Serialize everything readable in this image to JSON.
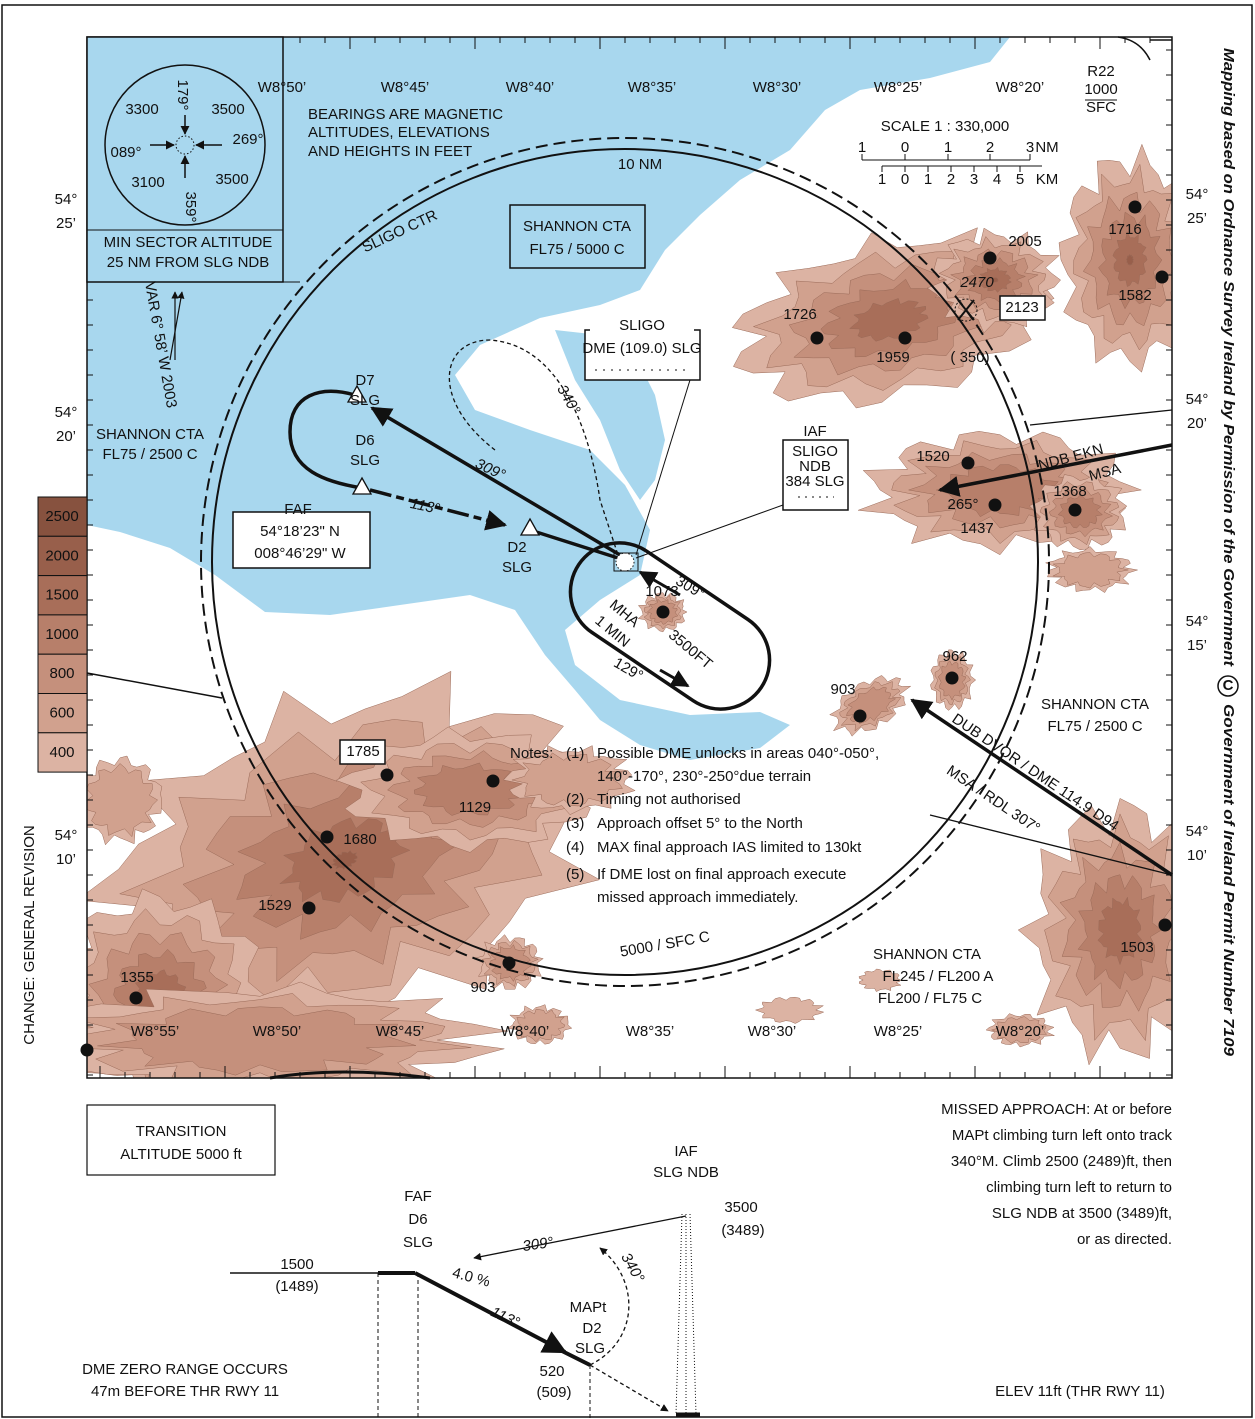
{
  "map": {
    "lon_top": [
      "W8°50’",
      "W8°45’",
      "W8°40’",
      "W8°35’",
      "W8°30’",
      "W8°25’",
      "W8°20’"
    ],
    "lon_bottom": [
      "W8°55’",
      "W8°50’",
      "W8°45’",
      "W8°40’",
      "W8°35’",
      "W8°30’",
      "W8°25’",
      "W8°20’"
    ],
    "lat_left": [
      [
        "54°",
        "25’"
      ],
      [
        "54°",
        "20’"
      ],
      [
        "54°",
        "10’"
      ]
    ],
    "lat_right": [
      [
        "54°",
        "25’"
      ],
      [
        "54°",
        "20’"
      ],
      [
        "54°",
        "15’"
      ],
      [
        "54°",
        "10’"
      ]
    ],
    "restricted_area": [
      "R22",
      "1000",
      "SFC"
    ],
    "scale": {
      "title": "SCALE 1 : 330,000",
      "nm_ticks": [
        "1",
        "0",
        "1",
        "2",
        "3"
      ],
      "nm_unit": "NM",
      "km_ticks": [
        "1",
        "0",
        "1",
        "2",
        "3",
        "4",
        "5"
      ],
      "km_unit": "KM"
    },
    "msa": {
      "bearings": [
        "179°",
        "269°",
        "089°",
        "359°"
      ],
      "altitudes": [
        "3300",
        "3500",
        "3100",
        "3500"
      ],
      "caption": [
        "MIN SECTOR ALTITUDE",
        "25 NM FROM SLG NDB"
      ]
    },
    "note_bearings": [
      "BEARINGS ARE MAGNETIC",
      "ALTITUDES, ELEVATIONS",
      "AND HEIGHTS IN FEET"
    ],
    "variation": "VAR 6° 58’ W 2003",
    "ring_label": "10 NM",
    "ctr_name": "SLIGO CTR",
    "ctr_limits": "5000 / SFC  C",
    "airspace": [
      {
        "name": "SHANNON CTA",
        "limits": [
          "FL75 / 5000  C"
        ]
      },
      {
        "name": "SHANNON CTA",
        "limits": [
          "FL75 / 2500  C"
        ]
      },
      {
        "name": "SHANNON CTA",
        "limits": [
          "FL75 / 2500  C"
        ]
      },
      {
        "name": "SHANNON CTA",
        "limits": [
          "FL245 / FL200  A",
          "FL200 / FL75  C"
        ]
      }
    ],
    "dme": {
      "name": "SLIGO",
      "ident": "DME  (109.0) SLG"
    },
    "ndb": {
      "role": "IAF",
      "name": "SLIGO",
      "type": "NDB",
      "ident": "384 SLG"
    },
    "fixes": [
      {
        "name": "D7",
        "ident": "SLG"
      },
      {
        "name": "D6",
        "ident": "SLG"
      },
      {
        "name": "D2",
        "ident": "SLG"
      }
    ],
    "faf": {
      "label": "FAF",
      "lat": "54°18’23\" N",
      "lon": "008°46’29\" W"
    },
    "tracks": {
      "inbound": "309°",
      "final": "113°",
      "missed": "340°",
      "hold_in": "309°",
      "hold_out": "129°",
      "mha": "MHA",
      "hold_time": "1 MIN",
      "hold_alt": "3500FT"
    },
    "ekn": {
      "name": "NDB EKN",
      "msa": "MSA",
      "radial": "265°"
    },
    "dub": {
      "name": "DUB DVOR / DME 114.9 D94",
      "msa": "MSA / RDL 307°"
    },
    "elevations": [
      2005,
      2470,
      2123,
      1726,
      1959,
      "( 350)",
      1716,
      1582,
      1520,
      1368,
      1437,
      1073,
      962,
      903,
      1785,
      1129,
      1680,
      1529,
      1355,
      903,
      1503
    ],
    "notes": {
      "heading": "Notes:",
      "items": [
        [
          "(1)",
          "Possible DME unlocks in areas 040°-050°,",
          "140°-170°, 230°-250°due terrain"
        ],
        [
          "(2)",
          "Timing not authorised"
        ],
        [
          "(3)",
          "Approach offset 5° to the North"
        ],
        [
          "(4)",
          "MAX final approach IAS limited to 130kt"
        ],
        [
          "(5)",
          "If DME lost on final approach execute",
          "missed approach immediately."
        ]
      ]
    },
    "legend": [
      2500,
      2000,
      1500,
      1000,
      800,
      600,
      400
    ]
  },
  "side": {
    "change": "CHANGE:  GENERAL REVISION",
    "copyright": "Mapping based on Ordnance Survey Ireland by Permission of the Government",
    "c": "C",
    "permit": "Government of Ireland Permit Number 7109"
  },
  "profile": {
    "transition": [
      "TRANSITION",
      "ALTITUDE  5000 ft"
    ],
    "missed_approach": [
      "MISSED APPROACH:  At or before",
      "MAPt climbing turn left onto track",
      "340°M. Climb 2500 (2489)ft, then",
      "climbing turn left to return to",
      "SLG NDB at 3500 (3489)ft,",
      "or as directed."
    ],
    "iaf": [
      "IAF",
      "SLG NDB"
    ],
    "iaf_alt": [
      "3500",
      "(3489)"
    ],
    "faf": [
      "FAF",
      "D6",
      "SLG"
    ],
    "inbound": "309°",
    "missed": "340°",
    "faf_alt": [
      "1500",
      "(1489)"
    ],
    "gradient": "4.0 %",
    "final": "113°",
    "mapt": [
      "MAPt",
      "D2",
      "SLG"
    ],
    "mapt_alt": [
      "520",
      "(509)"
    ],
    "dme_note": [
      "DME ZERO RANGE OCCURS",
      "47m BEFORE THR RWY 11"
    ],
    "elev": "ELEV 11ft (THR RWY 11)"
  }
}
